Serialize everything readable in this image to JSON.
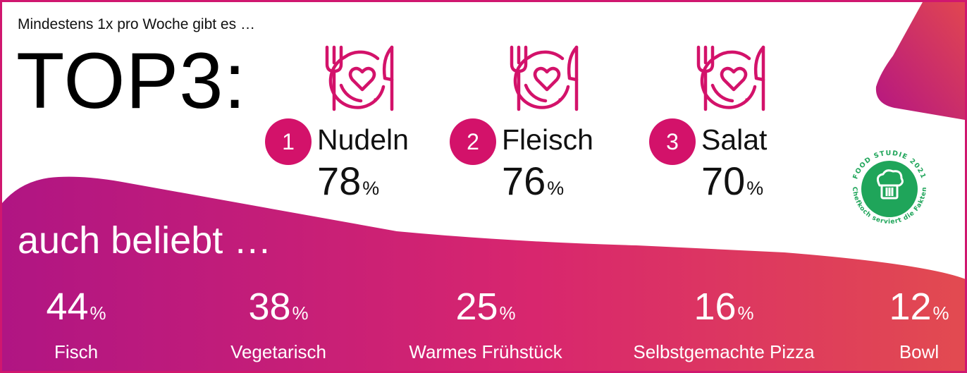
{
  "header": {
    "subtitle": "Mindestens 1x pro Woche gibt es …",
    "title": "TOP3:"
  },
  "top3": [
    {
      "rank": "1",
      "food": "Nudeln",
      "percent": "78",
      "unit": "%"
    },
    {
      "rank": "2",
      "food": "Fleisch",
      "percent": "76",
      "unit": "%"
    },
    {
      "rank": "3",
      "food": "Salat",
      "percent": "70",
      "unit": "%"
    }
  ],
  "also_popular": {
    "title": "auch beliebt …",
    "items": [
      {
        "percent": "44",
        "unit": "%",
        "name": "Fisch"
      },
      {
        "percent": "38",
        "unit": "%",
        "name": "Vegetarisch"
      },
      {
        "percent": "25",
        "unit": "%",
        "name": "Warmes Frühstück"
      },
      {
        "percent": "16",
        "unit": "%",
        "name": "Selbstgemachte Pizza"
      },
      {
        "percent": "12",
        "unit": "%",
        "name": "Bowl"
      }
    ]
  },
  "badge": {
    "top_text": "FOOD STUDIE 2021",
    "bottom_text": "Chefkoch serviert die Fakten",
    "icon": "chef-hat-icon"
  },
  "colors": {
    "accent": "#d3126a",
    "gradient_start": "#b01583",
    "gradient_mid": "#d8266e",
    "gradient_end": "#e24b50",
    "badge_green": "#1fa55a",
    "text_dark": "#111111"
  }
}
